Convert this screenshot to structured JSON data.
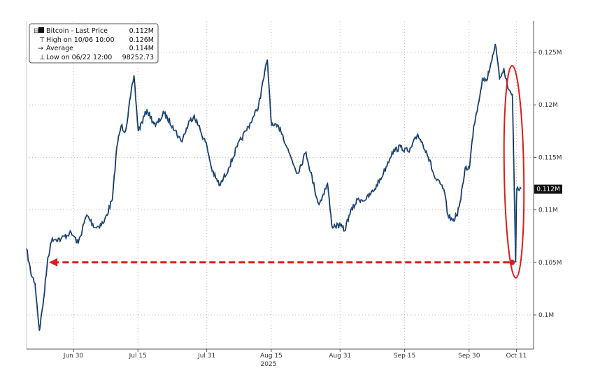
{
  "chart_data": {
    "type": "line",
    "title": "",
    "xlabel": "2025",
    "ylabel": "",
    "grid": true,
    "legend_placement": "top-left",
    "ylim": [
      96500,
      127500
    ],
    "y_ticks": [
      {
        "value": 125000,
        "label": "0.125M"
      },
      {
        "value": 120000,
        "label": "0.12M"
      },
      {
        "value": 115000,
        "label": "0.115M"
      },
      {
        "value": 110000,
        "label": "0.11M"
      },
      {
        "value": 105000,
        "label": "0.105M"
      },
      {
        "value": 100000,
        "label": "0.1M"
      }
    ],
    "x_ticks": [
      {
        "date": "2025-06-30",
        "label": "Jun 30"
      },
      {
        "date": "2025-07-15",
        "label": "Jul 15"
      },
      {
        "date": "2025-07-31",
        "label": "Jul 31"
      },
      {
        "date": "2025-08-15",
        "label": "Aug 15"
      },
      {
        "date": "2025-08-31",
        "label": "Aug 31"
      },
      {
        "date": "2025-09-15",
        "label": "Sep 15"
      },
      {
        "date": "2025-09-30",
        "label": "Sep 30"
      },
      {
        "date": "2025-10-11",
        "label": "Oct 11"
      }
    ],
    "year_label": "2025",
    "legend": {
      "series": {
        "label": "Bitcoin - Last Price",
        "value": "0.112M"
      },
      "high": {
        "label": "High on 10/06 10:00",
        "value": "0.126M"
      },
      "average": {
        "label": "Average",
        "value": "0.114M"
      },
      "low": {
        "label": "Low on 06/22 12:00",
        "value": "98252.73"
      }
    },
    "last_price_label": "0.112M",
    "series": [
      {
        "name": "Bitcoin - Last Price",
        "color": "#1f5fa8",
        "points": [
          [
            "2025-06-19",
            106300
          ],
          [
            "2025-06-20",
            104000
          ],
          [
            "2025-06-21",
            103000
          ],
          [
            "2025-06-22",
            98500
          ],
          [
            "2025-06-23",
            101500
          ],
          [
            "2025-06-24",
            105500
          ],
          [
            "2025-06-25",
            107300
          ],
          [
            "2025-06-27",
            107200
          ],
          [
            "2025-06-29",
            107800
          ],
          [
            "2025-06-30",
            107500
          ],
          [
            "2025-07-01",
            106800
          ],
          [
            "2025-07-03",
            109500
          ],
          [
            "2025-07-05",
            108300
          ],
          [
            "2025-07-07",
            108800
          ],
          [
            "2025-07-09",
            111000
          ],
          [
            "2025-07-10",
            116000
          ],
          [
            "2025-07-11",
            118000
          ],
          [
            "2025-07-12",
            117500
          ],
          [
            "2025-07-14",
            122800
          ],
          [
            "2025-07-15",
            117500
          ],
          [
            "2025-07-17",
            119500
          ],
          [
            "2025-07-19",
            118000
          ],
          [
            "2025-07-21",
            119200
          ],
          [
            "2025-07-23",
            118000
          ],
          [
            "2025-07-25",
            116500
          ],
          [
            "2025-07-27",
            118500
          ],
          [
            "2025-07-28",
            119000
          ],
          [
            "2025-07-29",
            118000
          ],
          [
            "2025-07-31",
            116000
          ],
          [
            "2025-08-01",
            114000
          ],
          [
            "2025-08-02",
            113000
          ],
          [
            "2025-08-03",
            112300
          ],
          [
            "2025-08-05",
            114000
          ],
          [
            "2025-08-07",
            116000
          ],
          [
            "2025-08-09",
            117500
          ],
          [
            "2025-08-11",
            119000
          ],
          [
            "2025-08-12",
            120000
          ],
          [
            "2025-08-14",
            124300
          ],
          [
            "2025-08-15",
            118000
          ],
          [
            "2025-08-17",
            117800
          ],
          [
            "2025-08-19",
            115500
          ],
          [
            "2025-08-21",
            113500
          ],
          [
            "2025-08-23",
            115500
          ],
          [
            "2025-08-25",
            112000
          ],
          [
            "2025-08-26",
            110500
          ],
          [
            "2025-08-27",
            111500
          ],
          [
            "2025-08-28",
            112500
          ],
          [
            "2025-08-29",
            108500
          ],
          [
            "2025-08-31",
            108500
          ],
          [
            "2025-09-01",
            108000
          ],
          [
            "2025-09-02",
            109500
          ],
          [
            "2025-09-04",
            111000
          ],
          [
            "2025-09-06",
            111000
          ],
          [
            "2025-09-08",
            112000
          ],
          [
            "2025-09-10",
            113500
          ],
          [
            "2025-09-12",
            115500
          ],
          [
            "2025-09-14",
            116000
          ],
          [
            "2025-09-16",
            115500
          ],
          [
            "2025-09-18",
            117200
          ],
          [
            "2025-09-20",
            115600
          ],
          [
            "2025-09-22",
            113000
          ],
          [
            "2025-09-24",
            112000
          ],
          [
            "2025-09-25",
            109500
          ],
          [
            "2025-09-26",
            109000
          ],
          [
            "2025-09-27",
            109400
          ],
          [
            "2025-09-28",
            111000
          ],
          [
            "2025-09-29",
            114000
          ],
          [
            "2025-09-30",
            114000
          ],
          [
            "2025-10-01",
            118000
          ],
          [
            "2025-10-02",
            120000
          ],
          [
            "2025-10-03",
            122500
          ],
          [
            "2025-10-04",
            122300
          ],
          [
            "2025-10-05",
            124000
          ],
          [
            "2025-10-06",
            125800
          ],
          [
            "2025-10-07",
            122500
          ],
          [
            "2025-10-08",
            123500
          ],
          [
            "2025-10-09",
            121500
          ],
          [
            "2025-10-10",
            121000
          ],
          [
            "2025-10-10T18",
            105000
          ],
          [
            "2025-10-10T22",
            110500
          ],
          [
            "2025-10-11",
            112000
          ],
          [
            "2025-10-12",
            112000
          ]
        ]
      }
    ],
    "annotations": [
      {
        "type": "ellipse",
        "color": "#d81e1e",
        "around": "2025-10-10 crash"
      },
      {
        "type": "dashed-arrow",
        "color": "#d81e1e",
        "value": 105000,
        "from": "2025-10-10",
        "to": "2025-06-24"
      }
    ]
  }
}
